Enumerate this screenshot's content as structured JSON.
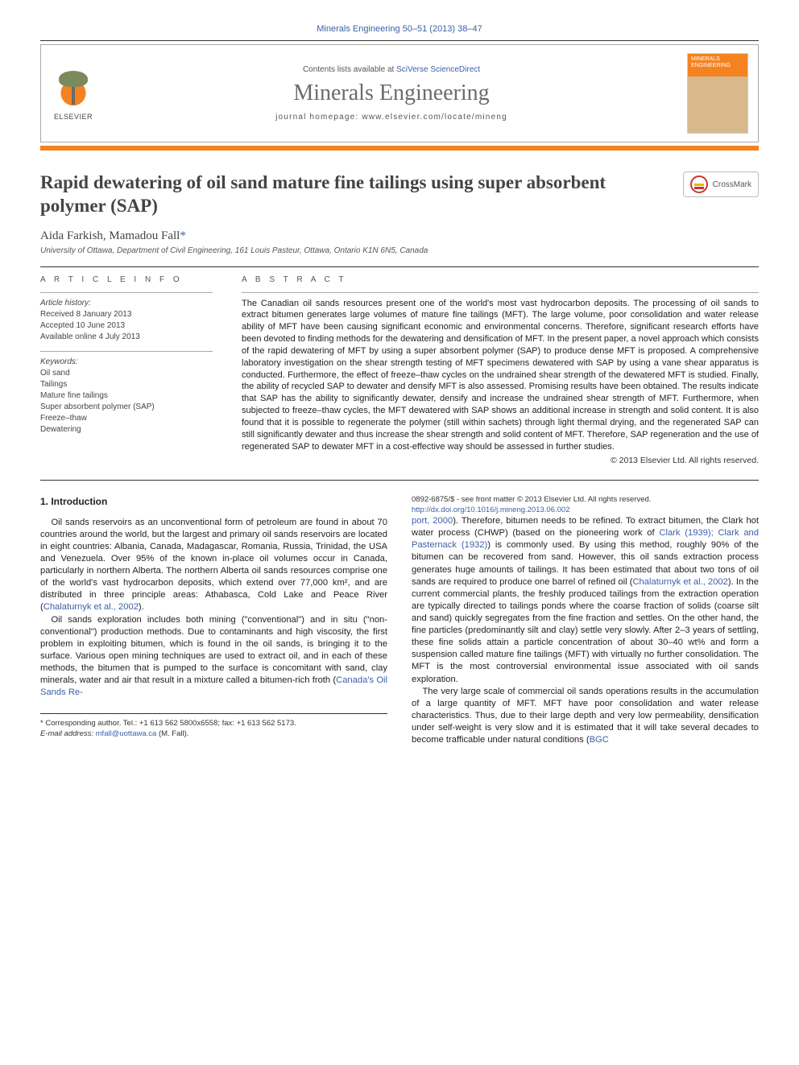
{
  "citation_top": "Minerals Engineering 50–51 (2013) 38–47",
  "header": {
    "contents_prefix": "Contents lists available at ",
    "contents_link": "SciVerse ScienceDirect",
    "journal": "Minerals Engineering",
    "homepage_prefix": "journal homepage: ",
    "homepage_url": "www.elsevier.com/locate/mineng",
    "publisher_word": "ELSEVIER",
    "cover_label_1": "MINERALS",
    "cover_label_2": "ENGINEERING"
  },
  "title": "Rapid dewatering of oil sand mature fine tailings using super absorbent polymer (SAP)",
  "crossmark_label": "CrossMark",
  "authors_line": "Aida Farkish, Mamadou Fall",
  "corr_mark": "*",
  "affiliation": "University of Ottawa, Department of Civil Engineering, 161 Louis Pasteur, Ottawa, Ontario K1N 6N5, Canada",
  "info_heading": "A R T I C L E   I N F O",
  "abstract_heading": "A B S T R A C T",
  "history": {
    "label": "Article history:",
    "received": "Received 8 January 2013",
    "accepted": "Accepted 10 June 2013",
    "online": "Available online 4 July 2013"
  },
  "keywords": {
    "label": "Keywords:",
    "items": [
      "Oil sand",
      "Tailings",
      "Mature fine tailings",
      "Super absorbent polymer (SAP)",
      "Freeze–thaw",
      "Dewatering"
    ]
  },
  "abstract": "The Canadian oil sands resources present one of the world's most vast hydrocarbon deposits. The processing of oil sands to extract bitumen generates large volumes of mature fine tailings (MFT). The large volume, poor consolidation and water release ability of MFT have been causing significant economic and environmental concerns. Therefore, significant research efforts have been devoted to finding methods for the dewatering and densification of MFT. In the present paper, a novel approach which consists of the rapid dewatering of MFT by using a super absorbent polymer (SAP) to produce dense MFT is proposed. A comprehensive laboratory investigation on the shear strength testing of MFT specimens dewatered with SAP by using a vane shear apparatus is conducted. Furthermore, the effect of freeze–thaw cycles on the undrained shear strength of the dewatered MFT is studied. Finally, the ability of recycled SAP to dewater and densify MFT is also assessed. Promising results have been obtained. The results indicate that SAP has the ability to significantly dewater, densify and increase the undrained shear strength of MFT. Furthermore, when subjected to freeze–thaw cycles, the MFT dewatered with SAP shows an additional increase in strength and solid content. It is also found that it is possible to regenerate the polymer (still within sachets) through light thermal drying, and the regenerated SAP can still significantly dewater and thus increase the shear strength and solid content of MFT. Therefore, SAP regeneration and the use of regenerated SAP to dewater MFT in a cost-effective way should be assessed in further studies.",
  "copyright": "© 2013 Elsevier Ltd. All rights reserved.",
  "section_heading": "1. Introduction",
  "para1": "Oil sands reservoirs as an unconventional form of petroleum are found in about 70 countries around the world, but the largest and primary oil sands reservoirs are located in eight countries: Albania, Canada, Madagascar, Romania, Russia, Trinidad, the USA and Venezuela. Over 95% of the known in-place oil volumes occur in Canada, particularly in northern Alberta. The northern Alberta oil sands resources comprise one of the world's vast hydrocarbon deposits, which extend over 77,000 km², and are distributed in three principle areas: Athabasca, Cold Lake and Peace River (",
  "para1_ref": "Chalaturnyk et al., 2002",
  "para1_end": ").",
  "para2": "Oil sands exploration includes both mining (\"conventional\") and in situ (\"non-conventional\") production methods. Due to contaminants and high viscosity, the first problem in exploiting bitumen, which is found in the oil sands, is bringing it to the surface. Various open mining techniques are used to extract oil, and in each of these methods, the bitumen that is pumped to the surface is concomitant with sand, clay minerals, water and air that result in a mixture called a bitumen-rich froth (",
  "para2_ref": "Canada's Oil Sands Re-",
  "para3_refstart": "port, 2000",
  "para3_a": "). Therefore, bitumen needs to be refined. To extract bitumen, the Clark hot water process (CHWP) (based on the pioneering work of ",
  "para3_ref2": "Clark (1939); Clark and Pasternack (1932)",
  "para3_b": ") is commonly used. By using this method, roughly 90% of the bitumen can be recovered from sand. However, this oil sands extraction process generates huge amounts of tailings. It has been estimated that about two tons of oil sands are required to produce one barrel of refined oil (",
  "para3_ref3": "Chalaturnyk et al., 2002",
  "para3_c": "). In the current commercial plants, the freshly produced tailings from the extraction operation are typically directed to tailings ponds where the coarse fraction of solids (coarse silt and sand) quickly segregates from the fine fraction and settles. On the other hand, the fine particles (predominantly silt and clay) settle very slowly. After 2–3 years of settling, these fine solids attain a particle concentration of about 30–40 wt% and form a suspension called mature fine tailings (MFT) with virtually no further consolidation. The MFT is the most controversial environmental issue associated with oil sands exploration.",
  "para4": "The very large scale of commercial oil sands operations results in the accumulation of a large quantity of MFT. MFT have poor consolidation and water release characteristics. Thus, due to their large depth and very low permeability, densification under self-weight is very slow and it is estimated that it will take several decades to become trafficable under natural conditions (",
  "para4_ref": "BGC",
  "footnote": {
    "corr": "* Corresponding author. Tel.: +1 613 562 5800x6558; fax: +1 613 562 5173.",
    "email_label": "E-mail address:",
    "email": "mfall@uottawa.ca",
    "email_name": "(M. Fall)."
  },
  "footer": {
    "issn": "0892-6875/$ - see front matter © 2013 Elsevier Ltd. All rights reserved.",
    "doi": "http://dx.doi.org/10.1016/j.mineng.2013.06.002"
  },
  "colors": {
    "accent_orange": "#f58220",
    "link_blue": "#3d5fa8",
    "text_grey": "#6b6b6b"
  }
}
